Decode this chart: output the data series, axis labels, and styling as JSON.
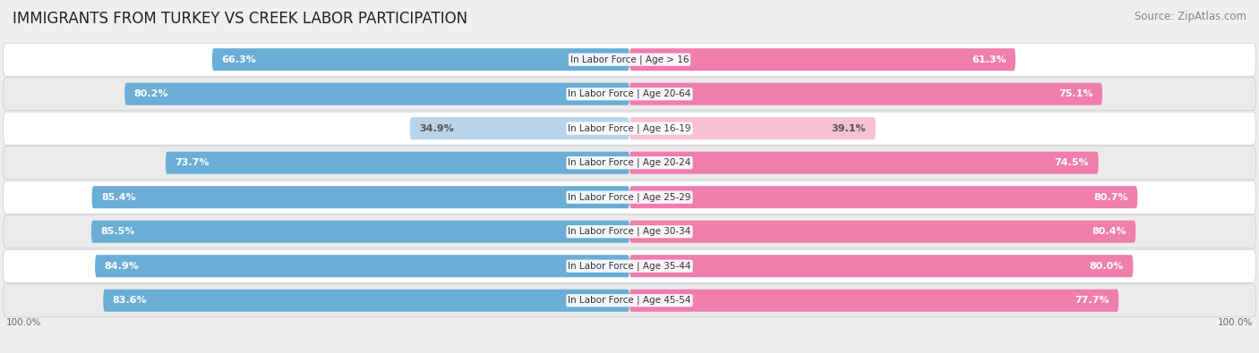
{
  "title": "IMMIGRANTS FROM TURKEY VS CREEK LABOR PARTICIPATION",
  "source": "Source: ZipAtlas.com",
  "categories": [
    "In Labor Force | Age > 16",
    "In Labor Force | Age 20-64",
    "In Labor Force | Age 16-19",
    "In Labor Force | Age 20-24",
    "In Labor Force | Age 25-29",
    "In Labor Force | Age 30-34",
    "In Labor Force | Age 35-44",
    "In Labor Force | Age 45-54"
  ],
  "turkey_values": [
    66.3,
    80.2,
    34.9,
    73.7,
    85.4,
    85.5,
    84.9,
    83.6
  ],
  "creek_values": [
    61.3,
    75.1,
    39.1,
    74.5,
    80.7,
    80.4,
    80.0,
    77.7
  ],
  "turkey_color": "#6aaed6",
  "turkey_color_light": "#b8d4ea",
  "creek_color": "#f07eaa",
  "creek_color_light": "#f8c0d4",
  "bg_color": "#f0eeee",
  "row_bg_colors": [
    "#ffffff",
    "#ebebeb"
  ],
  "label_color_white": "#ffffff",
  "label_color_dark": "#555555",
  "title_fontsize": 12,
  "source_fontsize": 8.5,
  "label_fontsize": 8,
  "category_fontsize": 7.5,
  "legend_fontsize": 8.5,
  "axis_label_fontsize": 7.5
}
